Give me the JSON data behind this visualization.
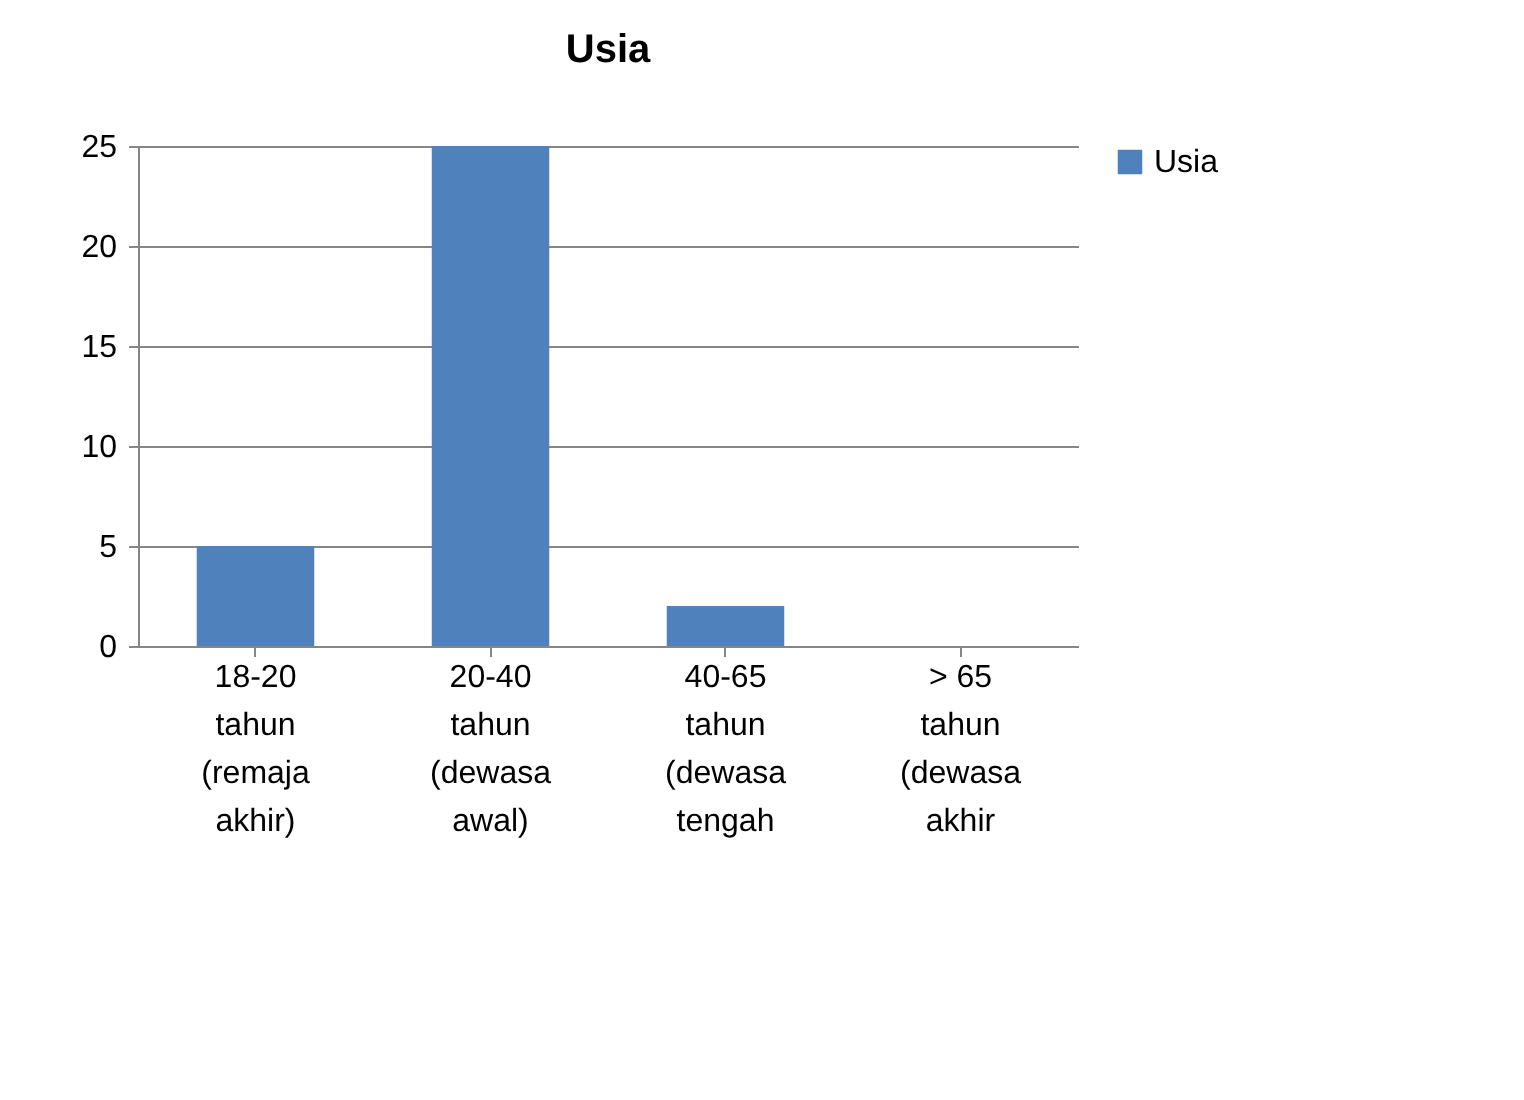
{
  "chart_data": {
    "type": "bar",
    "title": "Usia",
    "categories": [
      "18-20 tahun (remaja akhir)",
      "20-40 tahun (dewasa awal)",
      "40-65 tahun (dewasa tengah",
      "> 65 tahun (dewasa akhir"
    ],
    "series": [
      {
        "name": "Usia",
        "color": "#4f81bd",
        "values": [
          5,
          25,
          2,
          0
        ]
      }
    ],
    "ylim": [
      0,
      25
    ],
    "yticks": [
      0,
      5,
      10,
      15,
      20,
      25
    ],
    "grid": "y",
    "legend": "right"
  }
}
